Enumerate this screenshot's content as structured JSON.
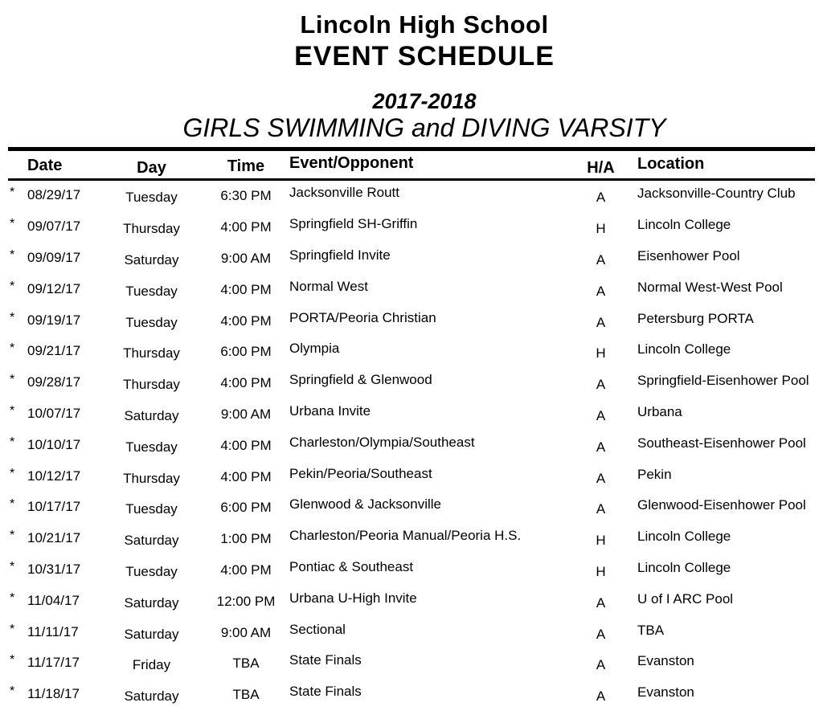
{
  "header": {
    "school": "Lincoln High School",
    "title": "EVENT SCHEDULE",
    "season": "2017-2018",
    "subtitle": "GIRLS SWIMMING and DIVING VARSITY"
  },
  "colors": {
    "text": "#000000",
    "background": "#ffffff"
  },
  "table": {
    "columns": [
      "Date",
      "Day",
      "Time",
      "Event/Opponent",
      "H/A",
      "Location"
    ],
    "rows": [
      {
        "marker": "*",
        "date": "08/29/17",
        "day": "Tuesday",
        "time": "6:30 PM",
        "event": "Jacksonville Routt",
        "ha": "A",
        "location": "Jacksonville-Country Club"
      },
      {
        "marker": "*",
        "date": "09/07/17",
        "day": "Thursday",
        "time": "4:00 PM",
        "event": "Springfield SH-Griffin",
        "ha": "H",
        "location": "Lincoln College"
      },
      {
        "marker": "*",
        "date": "09/09/17",
        "day": "Saturday",
        "time": "9:00 AM",
        "event": "Springfield Invite",
        "ha": "A",
        "location": "Eisenhower Pool"
      },
      {
        "marker": "*",
        "date": "09/12/17",
        "day": "Tuesday",
        "time": "4:00 PM",
        "event": "Normal West",
        "ha": "A",
        "location": "Normal West-West Pool"
      },
      {
        "marker": "*",
        "date": "09/19/17",
        "day": "Tuesday",
        "time": "4:00 PM",
        "event": "PORTA/Peoria Christian",
        "ha": "A",
        "location": "Petersburg PORTA"
      },
      {
        "marker": "*",
        "date": "09/21/17",
        "day": "Thursday",
        "time": "6:00 PM",
        "event": "Olympia",
        "ha": "H",
        "location": "Lincoln College"
      },
      {
        "marker": "*",
        "date": "09/28/17",
        "day": "Thursday",
        "time": "4:00 PM",
        "event": "Springfield & Glenwood",
        "ha": "A",
        "location": "Springfield-Eisenhower Pool"
      },
      {
        "marker": "*",
        "date": "10/07/17",
        "day": "Saturday",
        "time": "9:00 AM",
        "event": "Urbana Invite",
        "ha": "A",
        "location": "Urbana"
      },
      {
        "marker": "*",
        "date": "10/10/17",
        "day": "Tuesday",
        "time": "4:00 PM",
        "event": "Charleston/Olympia/Southeast",
        "ha": "A",
        "location": "Southeast-Eisenhower Pool"
      },
      {
        "marker": "*",
        "date": "10/12/17",
        "day": "Thursday",
        "time": "4:00 PM",
        "event": "Pekin/Peoria/Southeast",
        "ha": "A",
        "location": "Pekin"
      },
      {
        "marker": "*",
        "date": "10/17/17",
        "day": "Tuesday",
        "time": "6:00 PM",
        "event": "Glenwood & Jacksonville",
        "ha": "A",
        "location": "Glenwood-Eisenhower Pool"
      },
      {
        "marker": "*",
        "date": "10/21/17",
        "day": "Saturday",
        "time": "1:00 PM",
        "event": "Charleston/Peoria Manual/Peoria H.S.",
        "ha": "H",
        "location": "Lincoln College"
      },
      {
        "marker": "*",
        "date": "10/31/17",
        "day": "Tuesday",
        "time": "4:00 PM",
        "event": "Pontiac & Southeast",
        "ha": "H",
        "location": "Lincoln College"
      },
      {
        "marker": "*",
        "date": "11/04/17",
        "day": "Saturday",
        "time": "12:00 PM",
        "event": "Urbana U-High Invite",
        "ha": "A",
        "location": "U of I ARC Pool"
      },
      {
        "marker": "*",
        "date": "11/11/17",
        "day": "Saturday",
        "time": "9:00 AM",
        "event": "Sectional",
        "ha": "A",
        "location": "TBA"
      },
      {
        "marker": "*",
        "date": "11/17/17",
        "day": "Friday",
        "time": "TBA",
        "event": "State Finals",
        "ha": "A",
        "location": "Evanston"
      },
      {
        "marker": "*",
        "date": "11/18/17",
        "day": "Saturday",
        "time": "TBA",
        "event": "State Finals",
        "ha": "A",
        "location": "Evanston"
      }
    ]
  }
}
